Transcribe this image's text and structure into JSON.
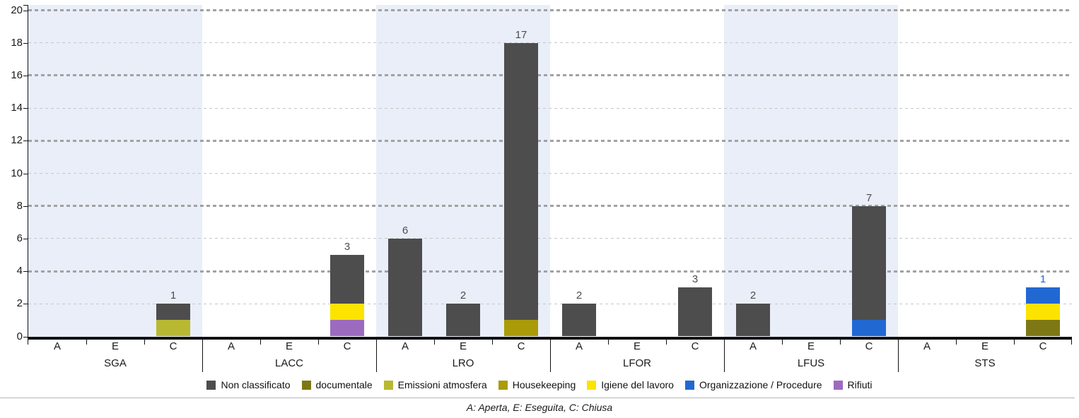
{
  "chart_data": {
    "type": "bar",
    "stacked": true,
    "title": "",
    "xlabel": "",
    "ylabel": "",
    "ylim": [
      0,
      20
    ],
    "yticks": [
      0,
      2,
      4,
      6,
      8,
      10,
      12,
      14,
      16,
      18,
      20
    ],
    "grid": "horizontal dashed, bold every 4 units",
    "legend_position": "bottom",
    "legend": [
      "Non classificato",
      "documentale",
      "Emissioni atmosfera",
      "Housekeeping",
      "Igiene del lavoro",
      "Organizzazione / Procedure",
      "Rifiuti"
    ],
    "series_colors": {
      "Non classificato": "#4d4d4d",
      "documentale": "#7d7813",
      "Emissioni atmosfera": "#b9b832",
      "Housekeeping": "#aa9b09",
      "Igiene del lavoro": "#fce300",
      "Organizzazione / Procedure": "#2268d2",
      "Rifiuti": "#9c6bbf"
    },
    "groups": [
      {
        "label": "SGA",
        "band": true,
        "bars": [
          {
            "label": "A",
            "segments": []
          },
          {
            "label": "E",
            "segments": []
          },
          {
            "label": "C",
            "segments": [
              {
                "series": "Emissioni atmosfera",
                "value": 1
              },
              {
                "series": "Non classificato",
                "value": 1
              }
            ]
          }
        ]
      },
      {
        "label": "LACC",
        "band": false,
        "bars": [
          {
            "label": "A",
            "segments": []
          },
          {
            "label": "E",
            "segments": []
          },
          {
            "label": "C",
            "segments": [
              {
                "series": "Rifiuti",
                "value": 1
              },
              {
                "series": "Igiene del lavoro",
                "value": 1
              },
              {
                "series": "Non classificato",
                "value": 3
              }
            ]
          }
        ]
      },
      {
        "label": "LRO",
        "band": true,
        "bars": [
          {
            "label": "A",
            "segments": [
              {
                "series": "Non classificato",
                "value": 6
              }
            ]
          },
          {
            "label": "E",
            "segments": [
              {
                "series": "Non classificato",
                "value": 2
              }
            ]
          },
          {
            "label": "C",
            "segments": [
              {
                "series": "Housekeeping",
                "value": 1
              },
              {
                "series": "Non classificato",
                "value": 17
              }
            ]
          }
        ]
      },
      {
        "label": "LFOR",
        "band": false,
        "bars": [
          {
            "label": "A",
            "segments": [
              {
                "series": "Non classificato",
                "value": 2
              }
            ]
          },
          {
            "label": "E",
            "segments": []
          },
          {
            "label": "C",
            "segments": [
              {
                "series": "Non classificato",
                "value": 3
              }
            ]
          }
        ]
      },
      {
        "label": "LFUS",
        "band": true,
        "bars": [
          {
            "label": "A",
            "segments": [
              {
                "series": "Non classificato",
                "value": 2
              }
            ]
          },
          {
            "label": "E",
            "segments": []
          },
          {
            "label": "C",
            "segments": [
              {
                "series": "Organizzazione / Procedure",
                "value": 1
              },
              {
                "series": "Non classificato",
                "value": 7
              }
            ]
          }
        ]
      },
      {
        "label": "STS",
        "band": false,
        "bars": [
          {
            "label": "A",
            "segments": []
          },
          {
            "label": "E",
            "segments": []
          },
          {
            "label": "C",
            "segments": [
              {
                "series": "documentale",
                "value": 1
              },
              {
                "series": "Igiene del lavoro",
                "value": 1
              },
              {
                "series": "Organizzazione / Procedure",
                "value": 1
              }
            ]
          }
        ]
      }
    ],
    "footnote": "A: Aperta, E: Eseguita, C: Chiusa"
  },
  "colors": {
    "band": "#e9eef8",
    "grid_bold": "#a2a2a2",
    "grid_light": "#c7c7c7",
    "axis": "#111111",
    "text": "#1a1a1a",
    "divider": "#b5b5b5"
  }
}
